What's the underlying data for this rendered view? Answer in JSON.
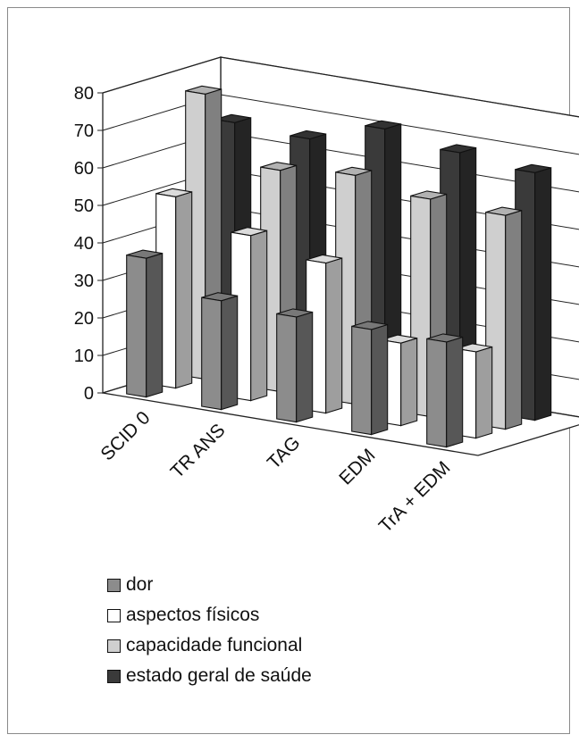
{
  "chart_data": {
    "type": "bar",
    "categories": [
      "SCID 0",
      "TR ANS",
      "TAG",
      "EDM",
      "TrA + EDM"
    ],
    "series": [
      {
        "name": "dor",
        "values": [
          37,
          29,
          28,
          28,
          28
        ],
        "color": "#8c8c8c"
      },
      {
        "name": "aspectos físicos",
        "values": [
          51,
          44,
          40,
          22,
          23
        ],
        "color": "#ffffff"
      },
      {
        "name": "capacidade funcional",
        "values": [
          76,
          59,
          61,
          58,
          57
        ],
        "color": "#cfcfcf"
      },
      {
        "name": "estado geral de saúde",
        "values": [
          66,
          65,
          71,
          68,
          66
        ],
        "color": "#3a3a3a"
      }
    ],
    "ylim": [
      0,
      80
    ],
    "yticks": [
      "0",
      "10",
      "20",
      "30",
      "40",
      "50",
      "60",
      "70",
      "80"
    ],
    "grid": true,
    "legend_position": "bottom",
    "title": "",
    "xlabel": "",
    "ylabel": ""
  }
}
